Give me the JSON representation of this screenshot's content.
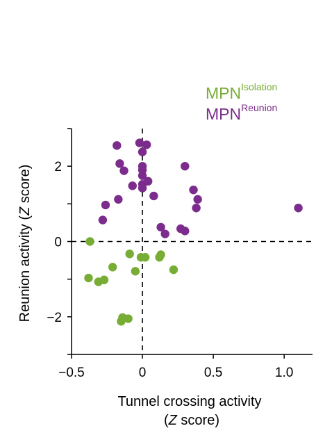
{
  "chart_data": {
    "type": "scatter",
    "xlabel_line1": "Tunnel crossing activity",
    "xlabel_line2_open": "(",
    "xlabel_line2_italic": "Z",
    "xlabel_line2_rest": " score)",
    "ylabel_prefix": "Reunion activity (",
    "ylabel_italic": "Z",
    "ylabel_suffix": " score)",
    "xlim": [
      -0.5,
      1.2
    ],
    "ylim": [
      -3,
      3
    ],
    "x_ticks": [
      -0.5,
      0,
      0.5,
      1.0
    ],
    "x_tick_labels": [
      "−0.5",
      "0",
      "0.5",
      "1.0"
    ],
    "y_ticks": [
      -2,
      0,
      2
    ],
    "y_tick_labels": [
      "−2",
      "0",
      "2"
    ],
    "reference_lines": {
      "x": 0,
      "y": 0,
      "style": "dashed"
    },
    "legend_placement": "top-right",
    "series": [
      {
        "name_base": "MPN",
        "name_sup": "Isolation",
        "color": "#77ad35",
        "points": [
          [
            -0.37,
            0.0
          ],
          [
            -0.38,
            -0.97
          ],
          [
            -0.31,
            -1.07
          ],
          [
            -0.27,
            -1.02
          ],
          [
            -0.21,
            -0.68
          ],
          [
            -0.09,
            -0.33
          ],
          [
            -0.05,
            -0.79
          ],
          [
            -0.01,
            -0.42
          ],
          [
            0.02,
            -0.42
          ],
          [
            0.12,
            -0.42
          ],
          [
            0.13,
            -0.35
          ],
          [
            0.22,
            -0.75
          ],
          [
            -0.14,
            -2.02
          ],
          [
            -0.15,
            -2.12
          ],
          [
            -0.1,
            -2.05
          ]
        ]
      },
      {
        "name_base": "MPN",
        "name_sup": "Reunion",
        "color": "#7b2c8c",
        "points": [
          [
            -0.18,
            2.55
          ],
          [
            -0.16,
            2.07
          ],
          [
            -0.13,
            1.88
          ],
          [
            -0.07,
            1.48
          ],
          [
            -0.17,
            1.12
          ],
          [
            -0.26,
            0.97
          ],
          [
            -0.28,
            0.57
          ],
          [
            -0.02,
            2.62
          ],
          [
            0.0,
            2.38
          ],
          [
            0.03,
            2.57
          ],
          [
            0.0,
            2.0
          ],
          [
            0.0,
            1.9
          ],
          [
            0.0,
            1.75
          ],
          [
            0.0,
            1.52
          ],
          [
            0.0,
            1.42
          ],
          [
            0.04,
            1.6
          ],
          [
            0.08,
            1.21
          ],
          [
            0.13,
            0.38
          ],
          [
            0.16,
            0.2
          ],
          [
            0.27,
            0.34
          ],
          [
            0.3,
            0.28
          ],
          [
            0.3,
            2.0
          ],
          [
            0.36,
            1.37
          ],
          [
            0.39,
            1.12
          ],
          [
            0.38,
            0.89
          ],
          [
            1.1,
            0.89
          ]
        ]
      }
    ]
  }
}
